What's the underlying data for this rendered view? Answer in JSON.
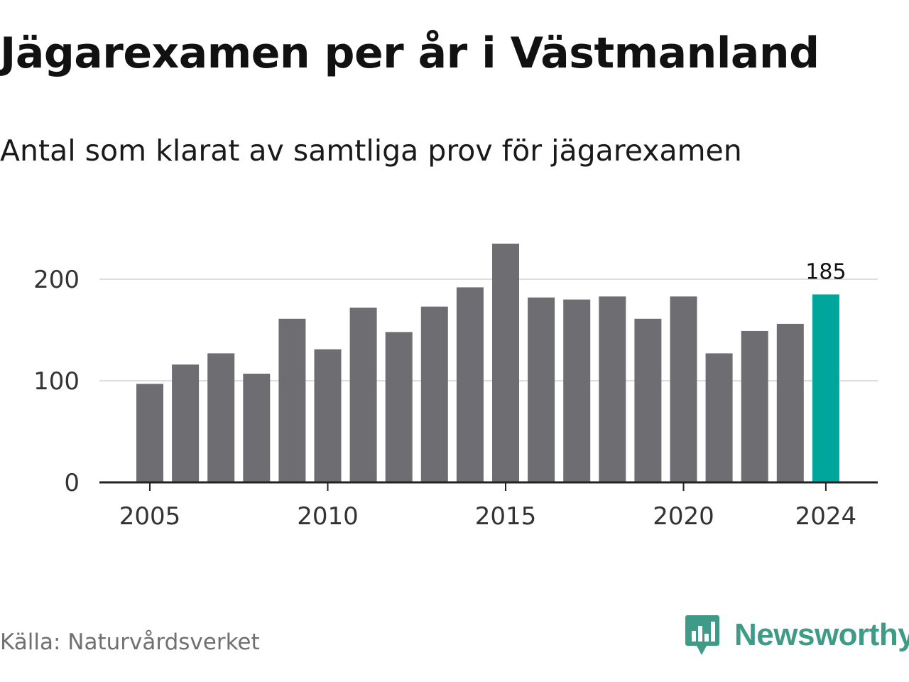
{
  "header": {
    "title": "Jägarexamen per år i Västmanland",
    "subtitle": "Antal som klarat av samtliga prov för jägarexamen"
  },
  "footer": {
    "source": "Källa: Naturvårdsverket",
    "brand": "Newsworthy",
    "brand_icon": "bar-chart-speech-bubble-icon"
  },
  "colors": {
    "bar": "#6e6d72",
    "highlight": "#00a69c",
    "grid": "#dddddd",
    "axis": "#222222",
    "brand": "#3d9b87"
  },
  "chart_data": {
    "type": "bar",
    "categories": [
      "2005",
      "2006",
      "2007",
      "2008",
      "2009",
      "2010",
      "2011",
      "2012",
      "2013",
      "2014",
      "2015",
      "2016",
      "2017",
      "2018",
      "2019",
      "2020",
      "2021",
      "2022",
      "2023",
      "2024"
    ],
    "values": [
      97,
      116,
      127,
      107,
      161,
      131,
      172,
      148,
      173,
      192,
      235,
      182,
      180,
      183,
      161,
      183,
      127,
      149,
      156,
      185
    ],
    "highlight_index": 19,
    "data_labels": [
      {
        "index": 19,
        "text": "185"
      }
    ],
    "x_ticks": [
      "2005",
      "2010",
      "2015",
      "2020",
      "2024"
    ],
    "y_ticks": [
      0,
      100,
      200
    ],
    "ylim": [
      0,
      240
    ],
    "grid": true,
    "legend": "none"
  }
}
